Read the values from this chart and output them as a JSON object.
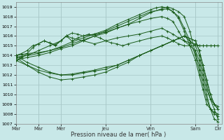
{
  "xlabel": "Pression niveau de la mer( hPa )",
  "bg_color": "#c8e8e8",
  "grid_color": "#a8c8c8",
  "line_color": "#1a5c1a",
  "ylim": [
    1007,
    1019.5
  ],
  "yticks": [
    1007,
    1008,
    1009,
    1010,
    1011,
    1012,
    1013,
    1014,
    1015,
    1016,
    1017,
    1018,
    1019
  ],
  "xtick_labels": [
    "Mar",
    "Mar",
    "Mer",
    "Jeu",
    "Ven",
    "Sam",
    "Dir"
  ],
  "xtick_positions": [
    0,
    24,
    48,
    96,
    144,
    192,
    216
  ],
  "xlim": [
    0,
    220
  ],
  "series": [
    {
      "x": [
        0,
        6,
        12,
        24,
        36,
        48,
        60,
        72,
        84,
        96,
        108,
        120,
        132,
        144,
        156,
        162,
        168,
        174,
        180,
        186,
        192,
        196,
        200,
        204,
        208,
        212,
        216
      ],
      "y": [
        1014.0,
        1014.1,
        1014.2,
        1014.3,
        1014.5,
        1014.8,
        1015.2,
        1015.6,
        1016.0,
        1016.3,
        1016.8,
        1017.2,
        1017.8,
        1018.4,
        1018.8,
        1019.0,
        1018.8,
        1018.5,
        1018.0,
        1016.5,
        1014.2,
        1013.0,
        1011.5,
        1010.0,
        1008.5,
        1007.5,
        1007.2
      ]
    },
    {
      "x": [
        0,
        6,
        12,
        24,
        36,
        48,
        60,
        72,
        84,
        96,
        108,
        120,
        132,
        144,
        150,
        156,
        162,
        168,
        174,
        180,
        186,
        192,
        196,
        200,
        204,
        208,
        212,
        216
      ],
      "y": [
        1013.8,
        1013.9,
        1014.0,
        1014.2,
        1014.5,
        1014.9,
        1015.4,
        1015.8,
        1016.2,
        1016.6,
        1017.2,
        1017.7,
        1018.2,
        1018.7,
        1018.9,
        1019.0,
        1018.9,
        1018.5,
        1018.0,
        1016.8,
        1015.5,
        1014.0,
        1012.5,
        1011.0,
        1009.5,
        1008.5,
        1008.0,
        1007.8
      ]
    },
    {
      "x": [
        0,
        12,
        24,
        36,
        48,
        60,
        72,
        84,
        96,
        108,
        120,
        132,
        144,
        156,
        162,
        168,
        174,
        180,
        186,
        192,
        196,
        200,
        204,
        208,
        212,
        216
      ],
      "y": [
        1013.5,
        1013.8,
        1014.0,
        1014.3,
        1014.7,
        1015.0,
        1015.5,
        1016.0,
        1016.5,
        1017.0,
        1017.5,
        1018.0,
        1018.5,
        1018.7,
        1018.8,
        1018.5,
        1017.8,
        1016.5,
        1015.0,
        1013.5,
        1012.0,
        1010.5,
        1009.0,
        1008.5,
        1008.2,
        1008.0
      ]
    },
    {
      "x": [
        0,
        12,
        24,
        36,
        48,
        54,
        60,
        66,
        72,
        84,
        96,
        108,
        120,
        132,
        144,
        156,
        162,
        168,
        174,
        180,
        186,
        192,
        196,
        200,
        204,
        208,
        212,
        216
      ],
      "y": [
        1013.8,
        1014.0,
        1014.5,
        1015.0,
        1015.5,
        1016.0,
        1015.5,
        1015.8,
        1016.0,
        1016.2,
        1016.4,
        1016.8,
        1017.2,
        1017.5,
        1017.8,
        1018.0,
        1017.8,
        1017.5,
        1016.5,
        1015.5,
        1015.0,
        1014.5,
        1013.5,
        1012.0,
        1010.5,
        1009.5,
        1009.0,
        1008.8
      ]
    },
    {
      "x": [
        0,
        6,
        12,
        18,
        24,
        30,
        36,
        42,
        48,
        54,
        60,
        72,
        84,
        96,
        108,
        120,
        132,
        144,
        156,
        162,
        168,
        174,
        180,
        186,
        192,
        196,
        200,
        204,
        208,
        212,
        216
      ],
      "y": [
        1014.0,
        1014.2,
        1014.5,
        1015.0,
        1015.2,
        1015.5,
        1015.3,
        1015.1,
        1015.5,
        1016.0,
        1015.8,
        1015.5,
        1015.2,
        1015.5,
        1015.8,
        1016.0,
        1016.2,
        1016.5,
        1016.8,
        1016.5,
        1016.2,
        1015.8,
        1015.5,
        1015.3,
        1015.2,
        1015.0,
        1015.0,
        1015.0,
        1015.0,
        1015.0,
        1015.0
      ]
    },
    {
      "x": [
        0,
        6,
        12,
        18,
        24,
        30,
        36,
        42,
        48,
        54,
        60,
        66,
        72,
        78,
        84,
        90,
        96,
        102,
        108,
        114,
        120,
        132,
        144,
        156,
        162,
        168,
        174,
        180,
        186,
        192,
        196,
        200,
        204,
        208,
        212,
        216
      ],
      "y": [
        1013.5,
        1013.8,
        1014.2,
        1014.8,
        1015.2,
        1015.5,
        1015.3,
        1015.0,
        1015.5,
        1016.0,
        1016.3,
        1016.2,
        1016.0,
        1016.2,
        1016.0,
        1015.8,
        1015.5,
        1015.3,
        1015.2,
        1015.0,
        1015.2,
        1015.5,
        1015.8,
        1016.0,
        1015.8,
        1015.5,
        1015.2,
        1015.0,
        1015.0,
        1015.0,
        1015.0,
        1015.0,
        1015.0,
        1015.0,
        1015.0,
        1015.0
      ]
    },
    {
      "x": [
        0,
        12,
        24,
        36,
        48,
        60,
        72,
        84,
        96,
        108,
        120,
        132,
        144,
        156,
        168,
        180,
        192,
        196,
        200,
        204,
        208,
        212,
        216
      ],
      "y": [
        1013.5,
        1013.0,
        1012.5,
        1012.2,
        1012.0,
        1012.1,
        1012.3,
        1012.5,
        1012.8,
        1013.0,
        1013.5,
        1014.0,
        1014.5,
        1015.0,
        1015.5,
        1016.0,
        1015.5,
        1014.5,
        1013.0,
        1011.5,
        1010.0,
        1009.0,
        1008.5
      ]
    },
    {
      "x": [
        0,
        12,
        24,
        36,
        48,
        60,
        72,
        84,
        96,
        108,
        120,
        132,
        144,
        156,
        168,
        180,
        192,
        196,
        200,
        204,
        208,
        212,
        216
      ],
      "y": [
        1014.0,
        1013.3,
        1012.8,
        1012.3,
        1012.0,
        1012.0,
        1012.2,
        1012.4,
        1012.6,
        1013.0,
        1013.5,
        1014.0,
        1014.5,
        1015.0,
        1015.5,
        1016.0,
        1015.5,
        1014.5,
        1013.0,
        1011.5,
        1010.0,
        1009.0,
        1008.5
      ]
    },
    {
      "x": [
        0,
        12,
        24,
        36,
        48,
        60,
        72,
        84,
        96,
        108,
        120,
        132,
        144,
        156,
        168,
        180,
        192,
        196,
        200,
        204,
        208,
        212,
        216
      ],
      "y": [
        1013.8,
        1013.0,
        1012.3,
        1011.8,
        1011.5,
        1011.6,
        1011.8,
        1012.0,
        1012.3,
        1012.8,
        1013.3,
        1014.0,
        1014.5,
        1015.0,
        1015.5,
        1016.0,
        1015.0,
        1014.0,
        1012.5,
        1011.0,
        1009.5,
        1008.5,
        1007.5
      ]
    }
  ]
}
